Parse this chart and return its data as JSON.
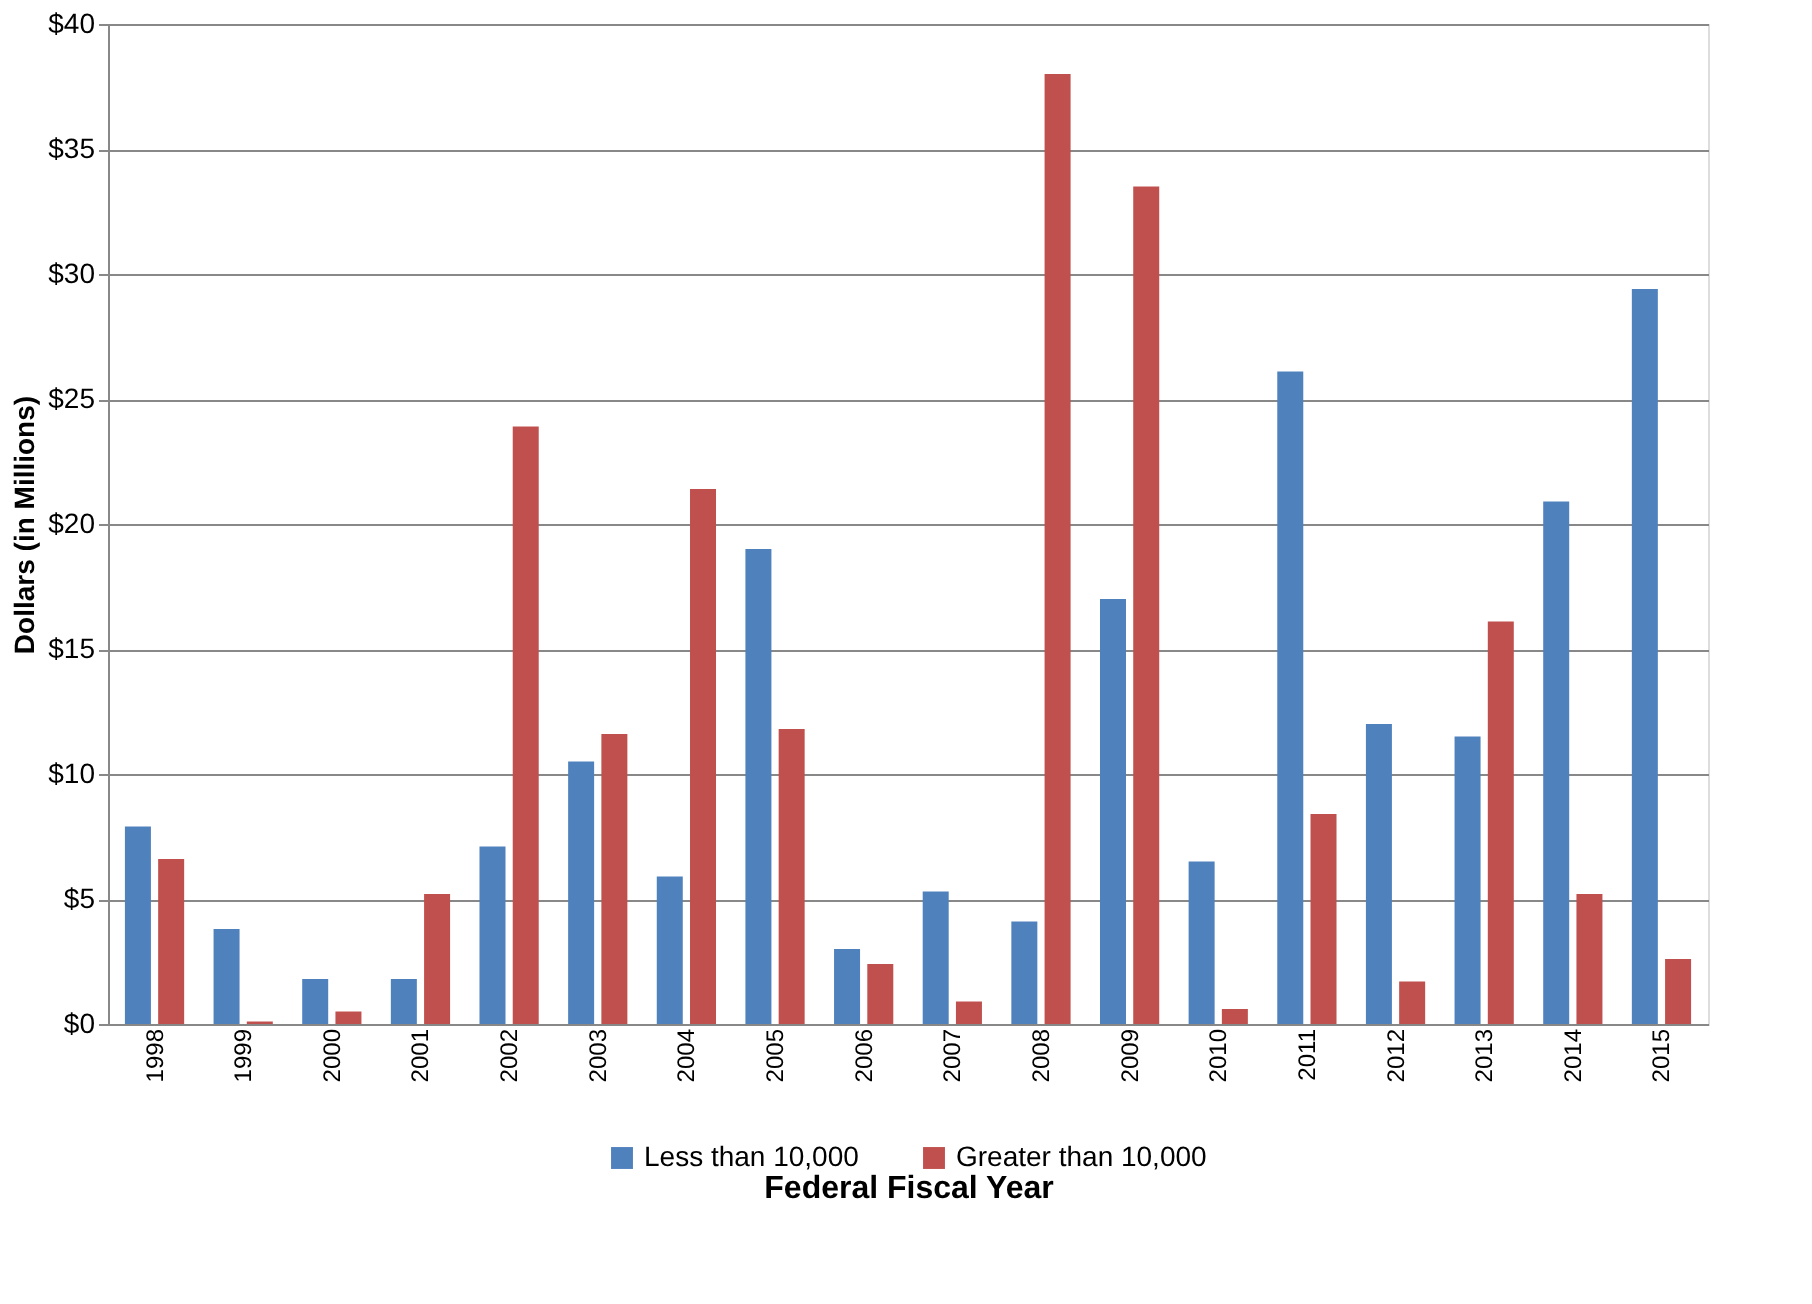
{
  "chart_data": {
    "type": "bar",
    "xlabel": "Federal Fiscal Year",
    "ylabel": "Dollars  (in Millions)",
    "categories": [
      "1998",
      "1999",
      "2000",
      "2001",
      "2002",
      "2003",
      "2004",
      "2005",
      "2006",
      "2007",
      "2008",
      "2009",
      "2010",
      "2011",
      "2012",
      "2013",
      "2014",
      "2015"
    ],
    "series": [
      {
        "name": "Less than 10,000",
        "color": "#4f81bd",
        "values": [
          7.9,
          3.8,
          1.8,
          1.8,
          7.1,
          10.5,
          5.9,
          19.0,
          3.0,
          5.3,
          4.1,
          17.0,
          6.5,
          26.1,
          12.0,
          11.5,
          20.9,
          29.4
        ]
      },
      {
        "name": "Greater than 10,000",
        "color": "#c0504d",
        "values": [
          6.6,
          0.1,
          0.5,
          5.2,
          23.9,
          11.6,
          21.4,
          11.8,
          2.4,
          0.9,
          38.0,
          33.5,
          0.6,
          8.4,
          1.7,
          16.1,
          5.2,
          2.6
        ]
      }
    ],
    "ylim": [
      0,
      40
    ],
    "yticks": [
      {
        "value": 0,
        "label": "$0"
      },
      {
        "value": 5,
        "label": "$5"
      },
      {
        "value": 10,
        "label": "$10"
      },
      {
        "value": 15,
        "label": "$15"
      },
      {
        "value": 20,
        "label": "$20"
      },
      {
        "value": 25,
        "label": "$25"
      },
      {
        "value": 30,
        "label": "$30"
      },
      {
        "value": 35,
        "label": "$35"
      },
      {
        "value": 40,
        "label": "$40"
      }
    ],
    "grid": "y",
    "legend": "bottom"
  }
}
